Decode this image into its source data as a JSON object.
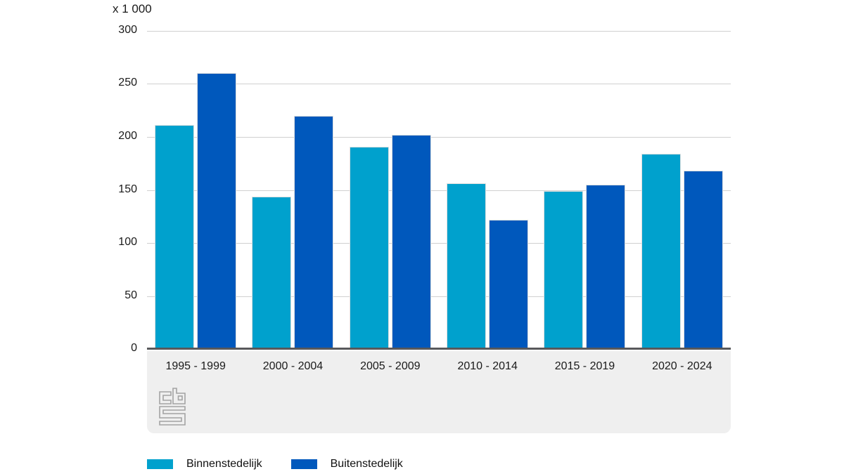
{
  "chart_data": {
    "type": "bar",
    "title": "",
    "unit_label": "x 1 000",
    "categories": [
      "1995 - 1999",
      "2000 - 2004",
      "2005 - 2009",
      "2010 - 2014",
      "2015 - 2019",
      "2020 - 2024"
    ],
    "series": [
      {
        "name": "Binnenstedelijk",
        "color": "#00a1cd",
        "values": [
          211,
          144,
          191,
          156,
          149,
          184
        ]
      },
      {
        "name": "Buitenstedelijk",
        "color": "#0058bc",
        "values": [
          260,
          220,
          202,
          122,
          155,
          168
        ]
      }
    ],
    "ylim": [
      0,
      300
    ],
    "yticks": [
      0,
      50,
      100,
      150,
      200,
      250,
      300
    ],
    "grid": true,
    "legend_position": "bottom-left"
  },
  "branding": {
    "logo_name": "cbs-logo"
  },
  "colors": {
    "grid": "#d0d0d0",
    "axis": "#58595b",
    "band": "#efefef",
    "text": "#1a1a1a",
    "logo": "#a3a3a3"
  }
}
